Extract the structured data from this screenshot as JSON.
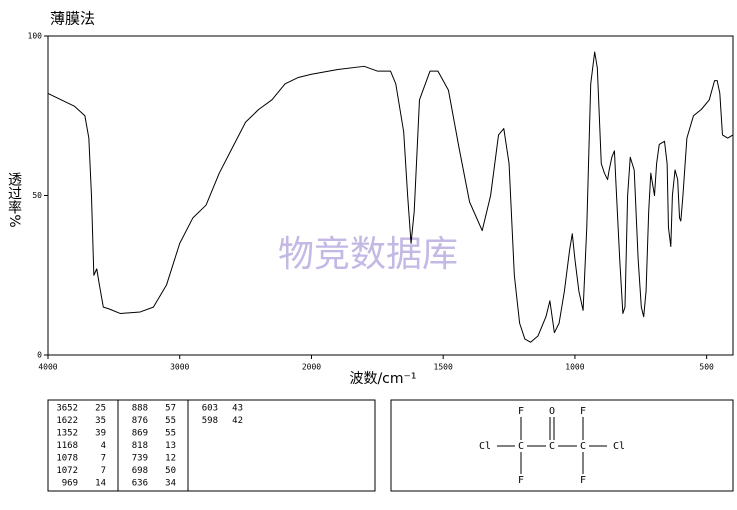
{
  "chart_data": {
    "type": "line",
    "title": "薄膜法",
    "xlabel": "波数/cm⁻¹",
    "ylabel": "透过率%",
    "watermark": "物竞数据库",
    "color": "#000000",
    "grid": false,
    "xlim": [
      4000,
      400
    ],
    "xticks": [
      4000,
      3000,
      2000,
      1500,
      1000,
      500
    ],
    "ylim": [
      0,
      100
    ],
    "yticks": [
      0,
      50,
      100
    ],
    "x": [
      4000,
      3900,
      3800,
      3720,
      3690,
      3670,
      3652,
      3630,
      3610,
      3580,
      3540,
      3450,
      3300,
      3200,
      3100,
      3000,
      2900,
      2800,
      2700,
      2600,
      2500,
      2400,
      2300,
      2200,
      2100,
      2000,
      1900,
      1800,
      1750,
      1700,
      1680,
      1650,
      1635,
      1622,
      1610,
      1590,
      1550,
      1520,
      1480,
      1440,
      1400,
      1352,
      1320,
      1290,
      1270,
      1250,
      1230,
      1210,
      1190,
      1168,
      1140,
      1110,
      1095,
      1078,
      1060,
      1040,
      1020,
      1010,
      1000,
      985,
      969,
      955,
      940,
      925,
      915,
      900,
      888,
      876,
      870,
      860,
      850,
      845,
      830,
      818,
      810,
      800,
      790,
      775,
      760,
      748,
      739,
      730,
      720,
      712,
      698,
      690,
      680,
      660,
      650,
      645,
      636,
      630,
      620,
      610,
      603,
      598,
      590,
      575,
      550,
      520,
      490,
      470,
      460,
      450,
      440,
      420,
      400
    ],
    "values": [
      82,
      80,
      78,
      75,
      68,
      50,
      25,
      27,
      22,
      15,
      14.5,
      13,
      13.5,
      15,
      22,
      35,
      43,
      47,
      57,
      65,
      73,
      77,
      80,
      85,
      87,
      88,
      89.5,
      90.5,
      89,
      89,
      85,
      70,
      50,
      35,
      45,
      80,
      89,
      89,
      83,
      65,
      48,
      39,
      50,
      69,
      71,
      60,
      25,
      10,
      5,
      4,
      6,
      12,
      17,
      7,
      10,
      20,
      33,
      38,
      30,
      20,
      14,
      40,
      85,
      95,
      90,
      60,
      57,
      55,
      58,
      62,
      64,
      55,
      30,
      13,
      15,
      50,
      62,
      58,
      30,
      15,
      12,
      20,
      45,
      57,
      50,
      60,
      66,
      67,
      60,
      40,
      34,
      50,
      58,
      55,
      43,
      42,
      50,
      68,
      75,
      77,
      80,
      86,
      86,
      82,
      69,
      68,
      69
    ]
  },
  "peaks": [
    [
      [
        "3652",
        "25"
      ],
      [
        "1622",
        "35"
      ],
      [
        "1352",
        "39"
      ],
      [
        "1168",
        "4"
      ],
      [
        "1078",
        "7"
      ],
      [
        "1072",
        "7"
      ],
      [
        "969",
        "14"
      ]
    ],
    [
      [
        "888",
        "57"
      ],
      [
        "876",
        "55"
      ],
      [
        "869",
        "55"
      ],
      [
        "818",
        "13"
      ],
      [
        "739",
        "12"
      ],
      [
        "698",
        "50"
      ],
      [
        "636",
        "34"
      ]
    ],
    [
      [
        "603",
        "43"
      ],
      [
        "598",
        "42"
      ]
    ]
  ],
  "structure": {
    "atoms": [
      "F",
      "O",
      "F",
      "Cl",
      "C",
      "C",
      "C",
      "Cl",
      "F",
      "F"
    ]
  }
}
